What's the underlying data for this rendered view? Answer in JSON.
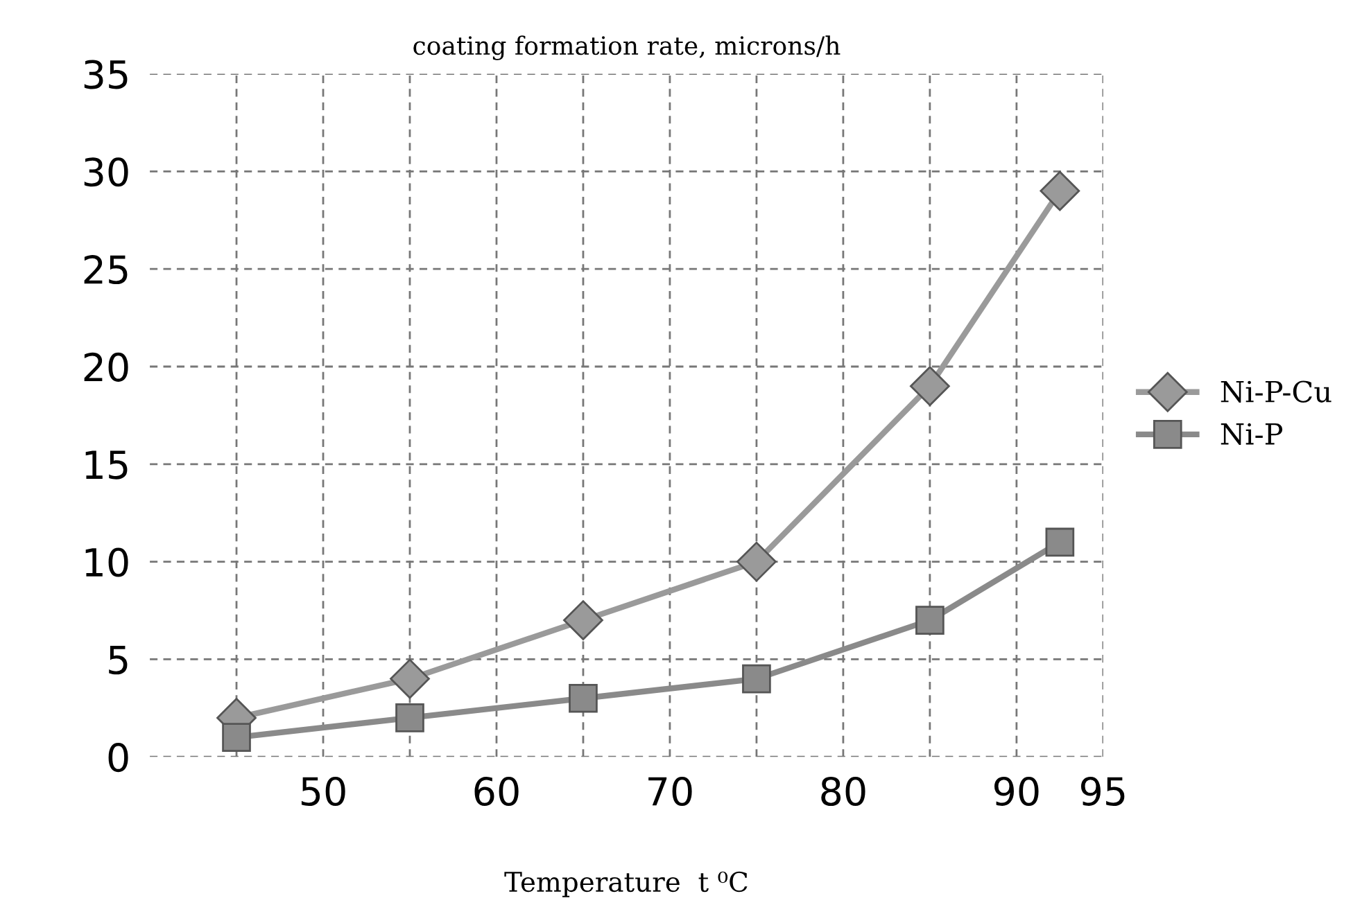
{
  "chart_data": {
    "type": "line",
    "title": "coating formation rate, microns/h",
    "xlabel": "Temperature  t ⁰C",
    "x": [
      45,
      55,
      65,
      75,
      85,
      92.5
    ],
    "series": [
      {
        "name": "Ni-P-Cu",
        "color": "#9a9a9a",
        "marker": "diamond",
        "values": [
          2,
          4,
          7,
          10,
          19,
          29
        ]
      },
      {
        "name": "Ni-P",
        "color": "#8a8a8a",
        "marker": "square",
        "values": [
          1,
          2,
          3,
          4,
          7,
          11
        ]
      }
    ],
    "xlim": [
      40,
      95
    ],
    "xticks": [
      {
        "value": 45,
        "label": null
      },
      50,
      {
        "value": 55,
        "label": null
      },
      60,
      {
        "value": 65,
        "label": null
      },
      70,
      {
        "value": 75,
        "label": null
      },
      80,
      {
        "value": 85,
        "label": null
      },
      90,
      95
    ],
    "ylim": [
      0,
      35
    ],
    "yticks": [
      0,
      5,
      10,
      15,
      20,
      25,
      30,
      35
    ],
    "grid": true,
    "legend": "right",
    "line_style": "solid"
  }
}
